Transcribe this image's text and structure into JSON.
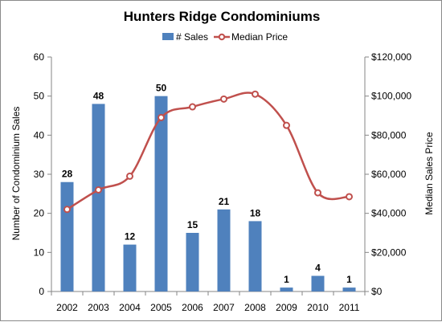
{
  "chart_data": {
    "type": "bar",
    "title": "Hunters Ridge Condominiums",
    "categories": [
      "2002",
      "2003",
      "2004",
      "2005",
      "2006",
      "2007",
      "2008",
      "2009",
      "2010",
      "2011"
    ],
    "series": [
      {
        "name": "# Sales",
        "type": "bar",
        "axis": "left",
        "color": "#4f81bd",
        "values": [
          28,
          48,
          12,
          50,
          15,
          21,
          18,
          1,
          4,
          1
        ],
        "data_labels": [
          "28",
          "48",
          "12",
          "50",
          "15",
          "21",
          "18",
          "1",
          "4",
          "1"
        ]
      },
      {
        "name": "Median Price",
        "type": "line",
        "smooth": true,
        "axis": "right",
        "color": "#c0504d",
        "values": [
          42000,
          52000,
          59000,
          89000,
          94500,
          98500,
          101000,
          85000,
          50500,
          48500
        ]
      }
    ],
    "ylabel": "Number of Condominium Sales",
    "ylim": [
      0,
      60
    ],
    "yticks": [
      "0",
      "10",
      "20",
      "30",
      "40",
      "50",
      "60"
    ],
    "y2label": "Median Sales Price",
    "y2lim": [
      0,
      120000
    ],
    "y2ticks": [
      "$0",
      "$20,000",
      "$40,000",
      "$60,000",
      "$80,000",
      "$100,000",
      "$120,000"
    ],
    "grid": false,
    "legend_position": "top"
  }
}
